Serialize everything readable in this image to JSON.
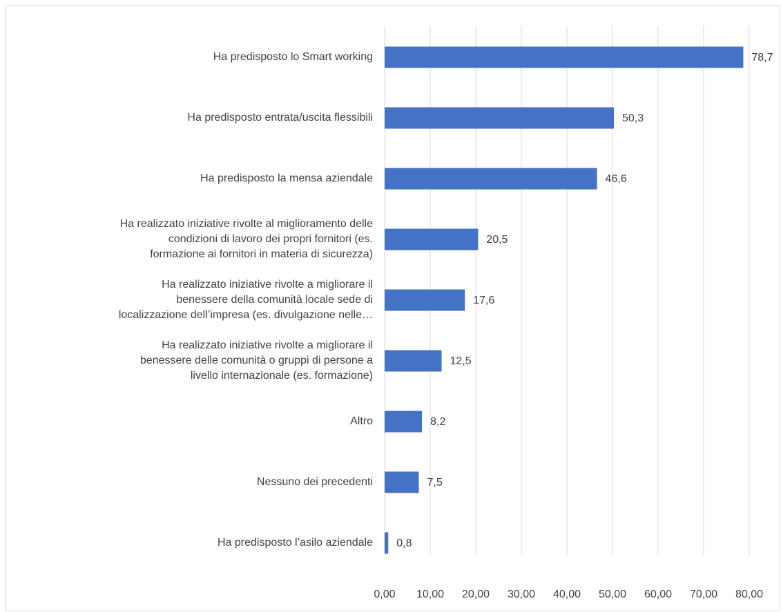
{
  "chart_data": {
    "type": "bar",
    "orientation": "horizontal",
    "categories": [
      "Ha predisposto lo Smart working",
      "Ha predisposto entrata/uscita flessibili",
      "Ha predisposto la mensa aziendale",
      "Ha realizzato iniziative rivolte al miglioramento delle\ncondizioni di lavoro dei propri fornitori (es.\nformazione ai fornitori in materia di sicurezza)",
      "Ha realizzato iniziative rivolte a migliorare il\nbenessere della comunità locale sede di\nlocalizzazione dell’impresa (es. divulgazione nelle…",
      "Ha realizzato iniziative rivolte a migliorare il\nbenessere delle comunità o gruppi di persone a\nlivello internazionale (es. formazione)",
      "Altro",
      "Nessuno dei precedenti",
      "Ha predisposto l’asilo aziendale"
    ],
    "values": [
      78.7,
      50.3,
      46.6,
      20.5,
      17.6,
      12.5,
      8.2,
      7.5,
      0.8
    ],
    "value_labels": [
      "78,7",
      "50,3",
      "46,6",
      "20,5",
      "17,6",
      "12,5",
      "8,2",
      "7,5",
      "0,8"
    ],
    "color": "#4472c4",
    "xlim": [
      0,
      80
    ],
    "xticks": [
      {
        "value": 0,
        "label": "0,00"
      },
      {
        "value": 10,
        "label": "10,00"
      },
      {
        "value": 20,
        "label": "20,00"
      },
      {
        "value": 30,
        "label": "30,00"
      },
      {
        "value": 40,
        "label": "40,00"
      },
      {
        "value": 50,
        "label": "50,00"
      },
      {
        "value": 60,
        "label": "60,00"
      },
      {
        "value": 70,
        "label": "70,00"
      },
      {
        "value": 80,
        "label": "80,00"
      }
    ],
    "grid": true
  }
}
